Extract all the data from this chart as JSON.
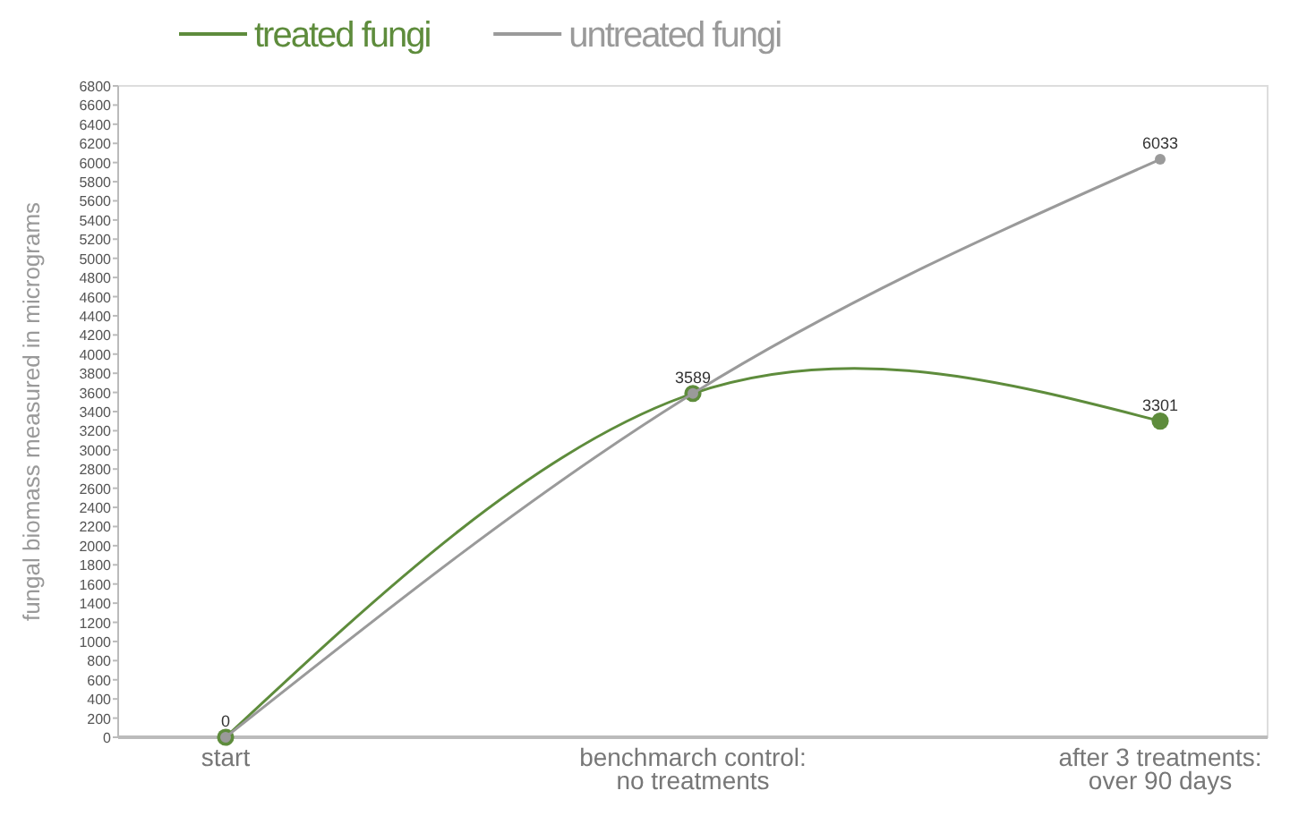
{
  "chart_data": {
    "type": "line",
    "ylabel": "fungal biomass measured in micrograms",
    "categories": [
      "start",
      "benchmarch control:\nno treatments",
      "after 3 treatments:\nover 90 days"
    ],
    "series": [
      {
        "name": "treated fungi",
        "color": "#5e8c3c",
        "values": [
          0,
          3589,
          3301
        ],
        "value_labels": [
          null,
          null,
          "3301"
        ]
      },
      {
        "name": "untreated fungi",
        "color": "#9a9a9a",
        "values": [
          0,
          3589,
          6033
        ],
        "value_labels": [
          "0",
          "3589",
          "6033"
        ]
      }
    ],
    "ylim": [
      0,
      6800
    ],
    "yticks": [
      0,
      200,
      400,
      600,
      800,
      1000,
      1200,
      1400,
      1600,
      1800,
      2000,
      2200,
      2400,
      2600,
      2800,
      3000,
      3200,
      3400,
      3600,
      3800,
      4000,
      4200,
      4400,
      4600,
      4800,
      5000,
      5200,
      5400,
      5600,
      5800,
      6000,
      6200,
      6400,
      6600,
      6800
    ],
    "grid": false,
    "legend": "top",
    "marker": "circle",
    "line_style": "solid"
  }
}
